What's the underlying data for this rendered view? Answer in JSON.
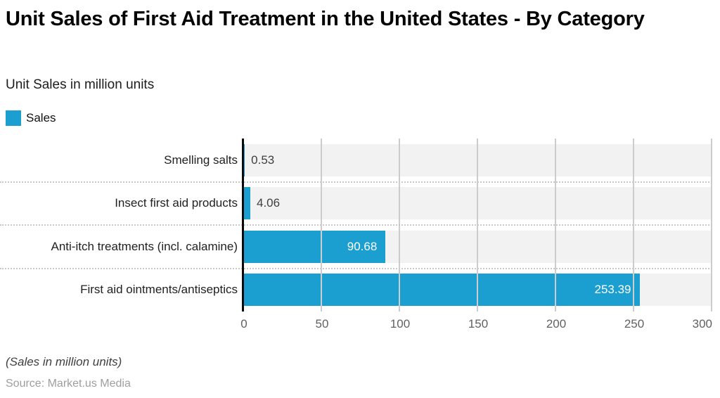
{
  "header": {
    "title": "Unit Sales of First Aid Treatment in the United States - By Category",
    "subtitle": "Unit Sales in million units"
  },
  "legend": {
    "label": "Sales",
    "swatch_color": "#1B9FD0"
  },
  "chart_data": {
    "type": "bar",
    "orientation": "horizontal",
    "title": "Unit Sales of First Aid Treatment in the United States - By Category",
    "xlabel": "",
    "ylabel": "",
    "categories": [
      "Smelling salts",
      "Insect first aid products",
      "Anti-itch treatments (incl. calamine)",
      "First aid ointments/antiseptics"
    ],
    "series": [
      {
        "name": "Sales",
        "values": [
          0.53,
          4.06,
          90.68,
          253.39
        ]
      }
    ],
    "value_labels": [
      "0.53",
      "4.06",
      "90.68",
      "253.39"
    ],
    "x_ticks": [
      0,
      50,
      100,
      150,
      200,
      250,
      300
    ],
    "xlim": [
      0,
      300
    ],
    "grid": "vertical",
    "legend_position": "top-left",
    "bar_color": "#1B9FD0",
    "row_band_color": "#F2F2F2",
    "gridline_color": "#CCCCCC"
  },
  "footer": {
    "note": "(Sales in million units)",
    "source": "Source: Market.us Media"
  }
}
